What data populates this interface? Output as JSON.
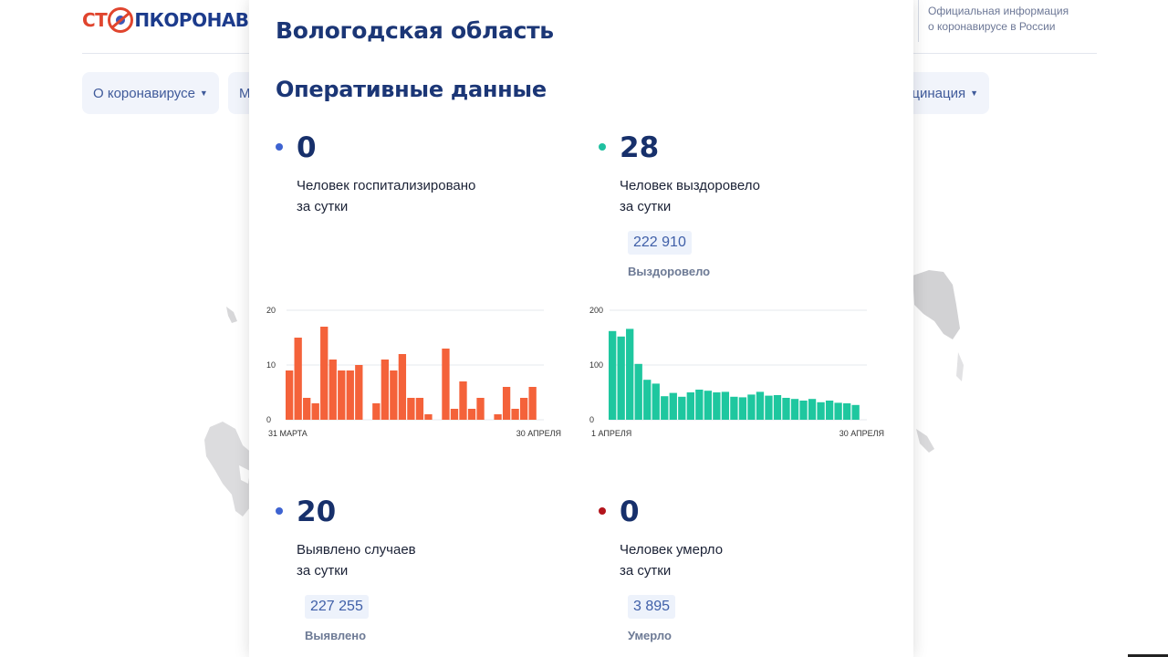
{
  "header": {
    "logo": {
      "part1": "СТ",
      "part2": "ПКОРОНАВИ"
    },
    "official_line1": "Официальная информация",
    "official_line2": "о коронавирусе в России",
    "nav": [
      {
        "label": "О коронавирусе"
      },
      {
        "label": "М"
      },
      {
        "label": "цинация"
      }
    ]
  },
  "panel": {
    "region": "Вологодская область",
    "section": "Оперативные данные",
    "stats": {
      "hospitalized": {
        "value": "0",
        "line1": "Человек госпитализировано",
        "line2": "за сутки",
        "color": "#3e63d1"
      },
      "recovered": {
        "value": "28",
        "line1": "Человек выздоровело",
        "line2": "за сутки",
        "total": "222 910",
        "total_label": "Выздоровело",
        "color": "#1fc0a0"
      },
      "cases": {
        "value": "20",
        "line1": "Выявлено случаев",
        "line2": "за сутки",
        "total": "227 255",
        "total_label": "Выявлено",
        "color": "#3e63d1"
      },
      "deaths": {
        "value": "0",
        "line1": "Человек умерло",
        "line2": "за сутки",
        "total": "3 895",
        "total_label": "Умерло",
        "color": "#b3141c"
      }
    }
  },
  "chart_data": [
    {
      "type": "bar",
      "color": "#f4623a",
      "ylim": [
        0,
        20
      ],
      "yticks": [
        "0",
        "10",
        "20"
      ],
      "x_start_label": "31 МАРТА",
      "x_end_label": "30 АПРЕЛЯ",
      "values": [
        9,
        15,
        4,
        3,
        17,
        11,
        9,
        9,
        10,
        0,
        3,
        11,
        9,
        12,
        4,
        4,
        1,
        0,
        13,
        2,
        7,
        2,
        4,
        0,
        1,
        6,
        2,
        4,
        6
      ]
    },
    {
      "type": "bar",
      "color": "#1ec79f",
      "ylim": [
        0,
        200
      ],
      "yticks": [
        "0",
        "100",
        "200"
      ],
      "x_start_label": "1 АПРЕЛЯ",
      "x_end_label": "30 АПРЕЛЯ",
      "values": [
        162,
        152,
        166,
        102,
        73,
        66,
        43,
        49,
        42,
        50,
        55,
        53,
        50,
        51,
        42,
        41,
        46,
        51,
        44,
        45,
        40,
        38,
        35,
        38,
        32,
        35,
        31,
        30,
        27
      ]
    }
  ]
}
